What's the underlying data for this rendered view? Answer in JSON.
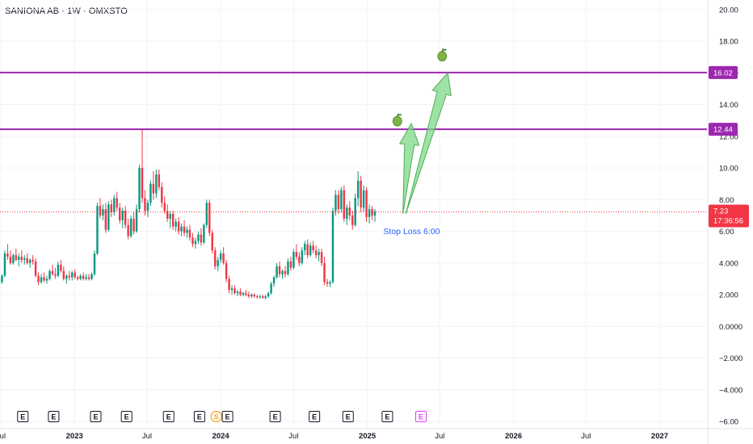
{
  "header": {
    "title": "SANIONA AB · 1W · OMXSTO"
  },
  "colors": {
    "up": "#089981",
    "down": "#f23645",
    "level_line": "#9c27b0",
    "arrow_fill": "#7fd88a",
    "arrow_stroke": "#4caf50",
    "price_badge": "#f23645",
    "annotation_text": "#2962ff"
  },
  "annotations": {
    "stop_loss": "Stop Loss 6:00",
    "icons": [
      "green-apple-icon",
      "green-apple-icon"
    ]
  },
  "price_badge": {
    "price": "7.23",
    "countdown": "17:36:56"
  },
  "chart_data": {
    "type": "candlestick",
    "title": "SANIONA AB · 1W · OMXSTO",
    "ylim": [
      -6.4,
      20.6
    ],
    "xlim": [
      "2022-06-29",
      "2027-04-29"
    ],
    "grid": true,
    "current_price": 7.23,
    "y_ticks": [
      {
        "value": 20,
        "label": "20.00"
      },
      {
        "value": 18,
        "label": "18.00"
      },
      {
        "value": 16,
        "label": "16.00"
      },
      {
        "value": 14,
        "label": "14.00"
      },
      {
        "value": 12,
        "label": "12.00"
      },
      {
        "value": 10,
        "label": "10.00"
      },
      {
        "value": 8,
        "label": "8.00"
      },
      {
        "value": 6,
        "label": "6.00"
      },
      {
        "value": 4,
        "label": "4.000"
      },
      {
        "value": 2,
        "label": "2.000"
      },
      {
        "value": 0,
        "label": "0.0000"
      },
      {
        "value": -2,
        "label": "−2.000"
      },
      {
        "value": -4,
        "label": "−4.000"
      },
      {
        "value": -6,
        "label": "−6.00"
      }
    ],
    "x_ticks": [
      {
        "date": "2022-07-01",
        "label": "Jul",
        "bold": false
      },
      {
        "date": "2023-01-01",
        "label": "2023",
        "bold": true
      },
      {
        "date": "2023-07-01",
        "label": "Jul",
        "bold": false
      },
      {
        "date": "2024-01-01",
        "label": "2024",
        "bold": true
      },
      {
        "date": "2024-07-01",
        "label": "Jul",
        "bold": false
      },
      {
        "date": "2025-01-01",
        "label": "2025",
        "bold": true
      },
      {
        "date": "2025-07-01",
        "label": "Jul",
        "bold": false
      },
      {
        "date": "2026-01-01",
        "label": "2026",
        "bold": true
      },
      {
        "date": "2026-07-01",
        "label": "Jul",
        "bold": false
      },
      {
        "date": "2027-01-01",
        "label": "2027",
        "bold": true
      }
    ],
    "levels": [
      {
        "value": 16.02,
        "label": "16.02"
      },
      {
        "value": 12.44,
        "label": "12.44"
      }
    ],
    "arrows": [
      {
        "from": [
          "2025-03-31",
          7.1
        ],
        "to": [
          "2025-04-21",
          12.8
        ]
      },
      {
        "from": [
          "2025-04-07",
          7.1
        ],
        "to": [
          "2025-07-21",
          16.0
        ]
      }
    ],
    "apples": [
      {
        "date": "2025-03-17",
        "value": 13.0
      },
      {
        "date": "2025-07-07",
        "value": 17.1
      }
    ],
    "stop_loss_point": {
      "date": "2025-02-10",
      "value": 6.0
    },
    "events": [
      {
        "date": "2022-08-25",
        "label": "E"
      },
      {
        "date": "2022-11-10",
        "label": "E"
      },
      {
        "date": "2023-02-23",
        "label": "E"
      },
      {
        "date": "2023-05-11",
        "label": "E"
      },
      {
        "date": "2023-08-24",
        "label": "E"
      },
      {
        "date": "2023-11-09",
        "label": "E"
      },
      {
        "date": "2023-12-21",
        "label": "S"
      },
      {
        "date": "2024-01-18",
        "label": "E"
      },
      {
        "date": "2024-05-16",
        "label": "E"
      },
      {
        "date": "2024-08-22",
        "label": "E"
      },
      {
        "date": "2024-11-14",
        "label": "E"
      },
      {
        "date": "2025-02-20",
        "label": "E"
      },
      {
        "date": "2025-05-15",
        "label": "E",
        "upcoming": true
      }
    ],
    "candles_start": "2022-06-27",
    "candles_interval_days": 7,
    "candles": [
      [
        2.7,
        3.0,
        2.5,
        2.8
      ],
      [
        2.8,
        3.3,
        2.7,
        3.2
      ],
      [
        3.2,
        4.8,
        3.1,
        4.6
      ],
      [
        4.6,
        5.2,
        4.2,
        4.4
      ],
      [
        4.4,
        4.8,
        3.9,
        4.0
      ],
      [
        4.0,
        4.6,
        3.9,
        4.5
      ],
      [
        4.5,
        4.9,
        4.1,
        4.2
      ],
      [
        4.2,
        4.6,
        3.8,
        4.4
      ],
      [
        4.4,
        4.8,
        4.0,
        4.2
      ],
      [
        4.2,
        4.5,
        3.9,
        4.3
      ],
      [
        4.3,
        4.6,
        3.9,
        4.0
      ],
      [
        4.0,
        4.3,
        3.7,
        4.2
      ],
      [
        4.2,
        4.5,
        3.9,
        4.1
      ],
      [
        4.1,
        4.3,
        3.1,
        3.2
      ],
      [
        3.2,
        3.4,
        2.6,
        2.8
      ],
      [
        2.8,
        3.3,
        2.7,
        3.1
      ],
      [
        3.1,
        3.4,
        2.8,
        2.9
      ],
      [
        2.9,
        3.2,
        2.7,
        3.0
      ],
      [
        3.0,
        3.6,
        2.9,
        3.5
      ],
      [
        3.5,
        3.9,
        3.2,
        3.3
      ],
      [
        3.3,
        3.7,
        3.0,
        3.2
      ],
      [
        3.2,
        4.1,
        3.1,
        3.9
      ],
      [
        3.9,
        4.2,
        3.4,
        3.5
      ],
      [
        3.5,
        3.8,
        2.9,
        3.0
      ],
      [
        3.0,
        3.3,
        2.7,
        3.2
      ],
      [
        3.2,
        3.5,
        2.9,
        3.1
      ],
      [
        3.1,
        3.5,
        2.9,
        3.4
      ],
      [
        3.4,
        3.6,
        3.0,
        3.1
      ],
      [
        3.1,
        3.2,
        2.9,
        3.0
      ],
      [
        3.0,
        3.3,
        2.9,
        3.2
      ],
      [
        3.2,
        3.4,
        2.9,
        3.0
      ],
      [
        3.0,
        3.3,
        2.9,
        3.1
      ],
      [
        3.1,
        3.3,
        2.9,
        3.0
      ],
      [
        3.0,
        3.4,
        2.9,
        3.3
      ],
      [
        3.3,
        4.8,
        3.2,
        4.6
      ],
      [
        4.6,
        7.8,
        4.5,
        7.6
      ],
      [
        7.6,
        8.1,
        6.8,
        7.0
      ],
      [
        7.0,
        7.7,
        6.7,
        7.4
      ],
      [
        7.4,
        7.8,
        5.9,
        6.1
      ],
      [
        6.1,
        7.9,
        6.0,
        7.7
      ],
      [
        7.7,
        8.0,
        6.9,
        7.2
      ],
      [
        7.2,
        8.3,
        7.0,
        8.1
      ],
      [
        8.1,
        8.5,
        7.3,
        7.5
      ],
      [
        7.5,
        7.8,
        6.5,
        6.7
      ],
      [
        6.7,
        7.5,
        6.2,
        7.3
      ],
      [
        7.3,
        7.6,
        6.2,
        6.4
      ],
      [
        6.4,
        6.8,
        5.5,
        5.7
      ],
      [
        5.7,
        7.0,
        5.6,
        6.8
      ],
      [
        6.8,
        7.2,
        5.8,
        6.0
      ],
      [
        6.0,
        7.7,
        5.9,
        7.4
      ],
      [
        7.4,
        10.2,
        7.2,
        10.0
      ],
      [
        10.0,
        12.4,
        7.8,
        8.1
      ],
      [
        8.1,
        8.6,
        7.0,
        7.3
      ],
      [
        7.3,
        8.0,
        6.9,
        7.8
      ],
      [
        7.8,
        9.2,
        7.6,
        9.0
      ],
      [
        9.0,
        9.8,
        8.0,
        8.4
      ],
      [
        8.4,
        9.9,
        8.1,
        9.6
      ],
      [
        9.6,
        9.9,
        8.6,
        8.8
      ],
      [
        8.8,
        9.1,
        7.5,
        7.8
      ],
      [
        7.8,
        8.2,
        7.1,
        7.3
      ],
      [
        7.3,
        7.7,
        6.6,
        6.8
      ],
      [
        6.8,
        7.3,
        6.2,
        7.1
      ],
      [
        7.1,
        7.3,
        6.1,
        6.3
      ],
      [
        6.3,
        6.8,
        6.0,
        6.6
      ],
      [
        6.6,
        6.9,
        5.8,
        6.0
      ],
      [
        6.0,
        6.5,
        5.7,
        6.3
      ],
      [
        6.3,
        6.7,
        5.7,
        5.9
      ],
      [
        5.9,
        6.3,
        5.6,
        6.1
      ],
      [
        6.1,
        6.4,
        5.4,
        5.6
      ],
      [
        5.6,
        5.9,
        5.0,
        5.2
      ],
      [
        5.2,
        5.6,
        4.9,
        5.4
      ],
      [
        5.4,
        6.0,
        5.2,
        5.8
      ],
      [
        5.8,
        6.2,
        5.1,
        5.3
      ],
      [
        5.3,
        6.5,
        5.2,
        6.4
      ],
      [
        6.4,
        8.0,
        6.2,
        7.8
      ],
      [
        7.8,
        8.0,
        5.7,
        5.9
      ],
      [
        5.9,
        6.1,
        4.6,
        4.8
      ],
      [
        4.8,
        5.0,
        3.6,
        3.8
      ],
      [
        3.8,
        4.4,
        3.5,
        4.2
      ],
      [
        4.2,
        4.8,
        4.0,
        4.6
      ],
      [
        4.6,
        5.0,
        3.9,
        4.0
      ],
      [
        4.0,
        4.2,
        2.8,
        3.0
      ],
      [
        3.0,
        3.2,
        2.1,
        2.3
      ],
      [
        2.3,
        2.6,
        2.0,
        2.4
      ],
      [
        2.4,
        2.6,
        2.0,
        2.1
      ],
      [
        2.1,
        2.3,
        1.9,
        2.2
      ],
      [
        2.2,
        2.4,
        1.9,
        2.0
      ],
      [
        2.0,
        2.2,
        1.9,
        2.1
      ],
      [
        2.1,
        2.3,
        1.9,
        2.0
      ],
      [
        2.0,
        2.2,
        1.8,
        1.9
      ],
      [
        1.9,
        2.1,
        1.8,
        2.0
      ],
      [
        2.0,
        2.1,
        1.8,
        1.9
      ],
      [
        1.9,
        2.0,
        1.75,
        1.85
      ],
      [
        1.85,
        2.0,
        1.75,
        1.9
      ],
      [
        1.9,
        2.0,
        1.75,
        1.8
      ],
      [
        1.8,
        2.0,
        1.7,
        1.9
      ],
      [
        1.9,
        2.2,
        1.8,
        2.1
      ],
      [
        2.1,
        2.8,
        2.0,
        2.7
      ],
      [
        2.7,
        3.2,
        2.5,
        3.1
      ],
      [
        3.1,
        4.0,
        3.0,
        3.8
      ],
      [
        3.8,
        4.1,
        3.1,
        3.3
      ],
      [
        3.3,
        3.6,
        3.0,
        3.5
      ],
      [
        3.5,
        3.8,
        3.1,
        3.3
      ],
      [
        3.3,
        4.3,
        3.2,
        4.1
      ],
      [
        4.1,
        4.4,
        3.5,
        3.7
      ],
      [
        3.7,
        4.9,
        3.6,
        4.7
      ],
      [
        4.7,
        5.2,
        4.2,
        4.4
      ],
      [
        4.4,
        4.7,
        3.8,
        4.0
      ],
      [
        4.0,
        5.0,
        3.9,
        4.8
      ],
      [
        4.8,
        5.4,
        4.5,
        5.2
      ],
      [
        5.2,
        5.5,
        4.3,
        4.5
      ],
      [
        4.5,
        5.3,
        4.4,
        5.1
      ],
      [
        5.1,
        5.4,
        4.6,
        4.8
      ],
      [
        4.8,
        5.1,
        4.3,
        4.5
      ],
      [
        4.5,
        4.9,
        4.1,
        4.7
      ],
      [
        4.7,
        4.9,
        3.8,
        4.0
      ],
      [
        4.0,
        4.4,
        2.6,
        2.8
      ],
      [
        2.8,
        3.0,
        2.5,
        2.7
      ],
      [
        2.7,
        2.9,
        2.5,
        2.8
      ],
      [
        2.8,
        7.5,
        2.7,
        7.3
      ],
      [
        7.3,
        8.6,
        7.0,
        8.3
      ],
      [
        8.3,
        8.6,
        7.1,
        7.4
      ],
      [
        7.4,
        8.8,
        7.2,
        8.6
      ],
      [
        8.6,
        8.9,
        6.6,
        6.8
      ],
      [
        6.8,
        7.7,
        6.4,
        7.5
      ],
      [
        7.5,
        7.9,
        6.7,
        7.0
      ],
      [
        7.0,
        7.3,
        6.1,
        6.4
      ],
      [
        6.4,
        8.4,
        6.3,
        8.1
      ],
      [
        8.1,
        9.8,
        7.6,
        9.2
      ],
      [
        9.2,
        9.5,
        7.2,
        7.5
      ],
      [
        7.5,
        8.9,
        7.2,
        8.6
      ],
      [
        8.6,
        8.8,
        6.6,
        6.9
      ],
      [
        6.9,
        7.7,
        6.5,
        7.4
      ],
      [
        7.4,
        7.6,
        6.7,
        7.0
      ],
      [
        7.0,
        7.4,
        6.6,
        7.23
      ]
    ]
  }
}
